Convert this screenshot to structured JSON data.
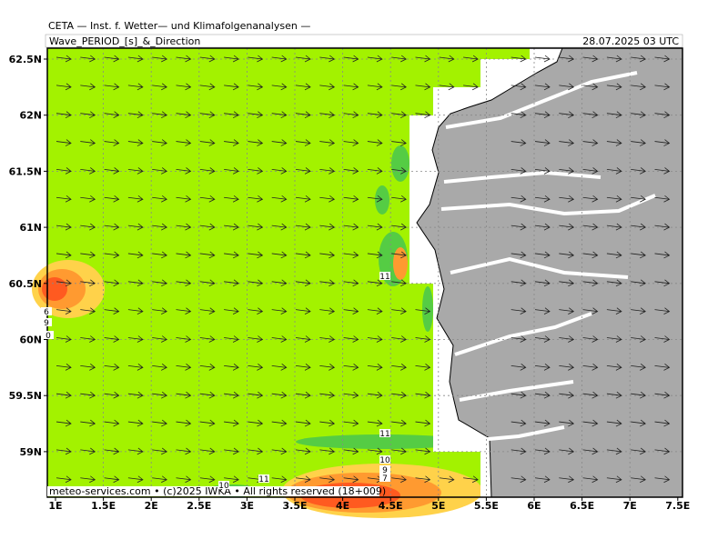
{
  "header": {
    "title": "CETA — Inst. f. Wetter— und Klimafolgenanalysen —",
    "product": "Wave_PERIOD_[s]_&_Direction",
    "valid": "28.07.2025 03 UTC"
  },
  "map": {
    "lat_labels": [
      "62.5N",
      "62N",
      "61.5N",
      "61N",
      "60.5N",
      "60N",
      "59.5N",
      "59N"
    ],
    "lon_labels": [
      "1E",
      "1.5E",
      "2E",
      "2.5E",
      "3E",
      "3.5E",
      "4E",
      "4.5E",
      "5E",
      "5.5E",
      "6E",
      "6.5E",
      "7E",
      "7.5E"
    ],
    "contour_labels": [
      "11",
      "6",
      "9",
      "0",
      "11",
      "10",
      "9",
      "7",
      "10",
      "11"
    ],
    "credit": "meteo-services.com • (c)2025 IWKA • All rights reserved (18+009)"
  }
}
